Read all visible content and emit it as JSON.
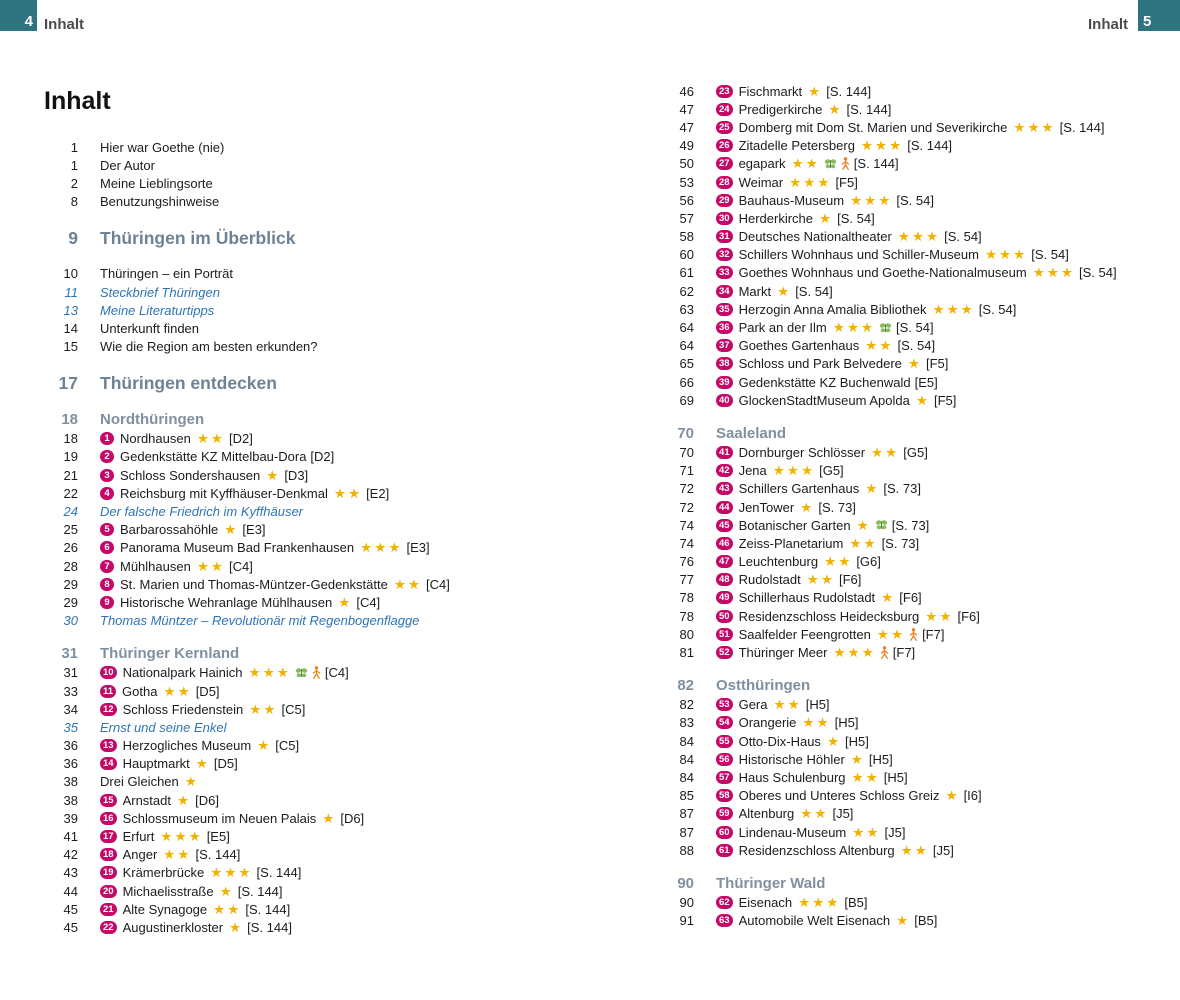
{
  "page_header": {
    "left": {
      "page_number": "4",
      "label": "Inhalt"
    },
    "right": {
      "page_number": "5",
      "label": "Inhalt"
    }
  },
  "title": "Inhalt",
  "colors": {
    "corner_teal": "#2d7480",
    "badge_magenta": "#c50867",
    "star_gold": "#f0b400",
    "heading_slate": "#6e8296",
    "subheading_slate": "#8090a0",
    "special_topic_blue": "#2e74b5",
    "butterfly_green": "#7cb24e",
    "person_orange": "#e8831f"
  },
  "columns": {
    "left": {
      "blocks": [
        {
          "type": "entry",
          "page": "1",
          "text": "Hier war Goethe (nie)"
        },
        {
          "type": "entry",
          "page": "1",
          "text": "Der Autor"
        },
        {
          "type": "entry",
          "page": "2",
          "text": "Meine Lieblingsorte"
        },
        {
          "type": "entry",
          "page": "8",
          "text": "Benutzungshinweise"
        },
        {
          "type": "h1",
          "page": "9",
          "text": "Thüringen im Überblick"
        },
        {
          "type": "entry",
          "page": "10",
          "text": "Thüringen – ein Porträt"
        },
        {
          "type": "entry",
          "page": "11",
          "text": "Steckbrief Thüringen",
          "variant": "italic"
        },
        {
          "type": "entry",
          "page": "13",
          "text": "Meine Literaturtipps",
          "variant": "italic"
        },
        {
          "type": "entry",
          "page": "14",
          "text": "Unterkunft finden"
        },
        {
          "type": "entry",
          "page": "15",
          "text": "Wie die Region am besten erkunden?"
        },
        {
          "type": "h1",
          "page": "17",
          "text": "Thüringen entdecken"
        },
        {
          "type": "h2",
          "page": "18",
          "text": "Nordthüringen"
        },
        {
          "type": "entry",
          "page": "18",
          "marker": "1",
          "text": "Nordhausen",
          "stars": 2,
          "ref": "[D2]"
        },
        {
          "type": "entry",
          "page": "19",
          "marker": "2",
          "text": "Gedenkstätte KZ Mittelbau-Dora",
          "stars": 0,
          "ref": "[D2]"
        },
        {
          "type": "entry",
          "page": "21",
          "marker": "3",
          "text": "Schloss Sondershausen",
          "stars": 1,
          "ref": "[D3]"
        },
        {
          "type": "entry",
          "page": "22",
          "marker": "4",
          "text": "Reichsburg mit Kyffhäuser-Denkmal",
          "stars": 2,
          "ref": "[E2]"
        },
        {
          "type": "entry",
          "page": "24",
          "text": "Der falsche Friedrich im Kyffhäuser",
          "variant": "italic"
        },
        {
          "type": "entry",
          "page": "25",
          "marker": "5",
          "text": "Barbarossahöhle",
          "stars": 1,
          "ref": "[E3]"
        },
        {
          "type": "entry",
          "page": "26",
          "marker": "6",
          "text": "Panorama Museum Bad Frankenhausen",
          "stars": 3,
          "ref": "[E3]"
        },
        {
          "type": "entry",
          "page": "28",
          "marker": "7",
          "text": "Mühlhausen",
          "stars": 2,
          "ref": "[C4]"
        },
        {
          "type": "entry",
          "page": "29",
          "marker": "8",
          "text": "St. Marien und Thomas-Müntzer-Gedenkstätte",
          "stars": 2,
          "ref": "[C4]"
        },
        {
          "type": "entry",
          "page": "29",
          "marker": "9",
          "text": "Historische Wehranlage Mühlhausen",
          "stars": 1,
          "ref": "[C4]"
        },
        {
          "type": "entry",
          "page": "30",
          "text": "Thomas Müntzer – Revolutionär mit Regenbogenflagge",
          "variant": "italic"
        },
        {
          "type": "h2",
          "page": "31",
          "text": "Thüringer Kernland"
        },
        {
          "type": "entry",
          "page": "31",
          "marker": "10",
          "text": "Nationalpark Hainich",
          "stars": 3,
          "icons": [
            "butterfly",
            "person"
          ],
          "ref": "[C4]"
        },
        {
          "type": "entry",
          "page": "33",
          "marker": "11",
          "text": "Gotha",
          "stars": 2,
          "ref": "[D5]"
        },
        {
          "type": "entry",
          "page": "34",
          "marker": "12",
          "text": "Schloss Friedenstein",
          "stars": 2,
          "ref": "[C5]"
        },
        {
          "type": "entry",
          "page": "35",
          "text": "Ernst und seine Enkel",
          "variant": "italic"
        },
        {
          "type": "entry",
          "page": "36",
          "marker": "13",
          "text": "Herzogliches Museum",
          "stars": 1,
          "ref": "[C5]"
        },
        {
          "type": "entry",
          "page": "36",
          "marker": "14",
          "text": "Hauptmarkt",
          "stars": 1,
          "ref": "[D5]"
        },
        {
          "type": "entry",
          "page": "38",
          "text": "Drei Gleichen",
          "stars": 1
        },
        {
          "type": "entry",
          "page": "38",
          "marker": "15",
          "text": "Arnstadt",
          "stars": 1,
          "ref": "[D6]"
        },
        {
          "type": "entry",
          "page": "39",
          "marker": "16",
          "text": "Schlossmuseum im Neuen Palais",
          "stars": 1,
          "ref": "[D6]"
        },
        {
          "type": "entry",
          "page": "41",
          "marker": "17",
          "text": "Erfurt",
          "stars": 3,
          "ref": "[E5]"
        },
        {
          "type": "entry",
          "page": "42",
          "marker": "18",
          "text": "Anger",
          "stars": 2,
          "ref": "[S. 144]"
        },
        {
          "type": "entry",
          "page": "43",
          "marker": "19",
          "text": "Krämerbrücke",
          "stars": 3,
          "ref": "[S. 144]"
        },
        {
          "type": "entry",
          "page": "44",
          "marker": "20",
          "text": "Michaelisstraße",
          "stars": 1,
          "ref": "[S. 144]"
        },
        {
          "type": "entry",
          "page": "45",
          "marker": "21",
          "text": "Alte Synagoge",
          "stars": 2,
          "ref": "[S. 144]"
        },
        {
          "type": "entry",
          "page": "45",
          "marker": "22",
          "text": "Augustinerkloster",
          "stars": 1,
          "ref": "[S. 144]"
        }
      ]
    },
    "right": {
      "blocks": [
        {
          "type": "entry",
          "page": "46",
          "marker": "23",
          "text": "Fischmarkt",
          "stars": 1,
          "ref": "[S. 144]"
        },
        {
          "type": "entry",
          "page": "47",
          "marker": "24",
          "text": "Predigerkirche",
          "stars": 1,
          "ref": "[S. 144]"
        },
        {
          "type": "entry",
          "page": "47",
          "marker": "25",
          "text": "Domberg mit Dom St. Marien und Severikirche",
          "stars": 3,
          "ref": "[S. 144]"
        },
        {
          "type": "entry",
          "page": "49",
          "marker": "26",
          "text": "Zitadelle Petersberg",
          "stars": 3,
          "ref": "[S. 144]"
        },
        {
          "type": "entry",
          "page": "50",
          "marker": "27",
          "text": "egapark",
          "stars": 2,
          "icons": [
            "butterfly",
            "person"
          ],
          "ref": "[S. 144]"
        },
        {
          "type": "entry",
          "page": "53",
          "marker": "28",
          "text": "Weimar",
          "stars": 3,
          "ref": "[F5]"
        },
        {
          "type": "entry",
          "page": "56",
          "marker": "29",
          "text": "Bauhaus-Museum",
          "stars": 3,
          "ref": "[S. 54]"
        },
        {
          "type": "entry",
          "page": "57",
          "marker": "30",
          "text": "Herderkirche",
          "stars": 1,
          "ref": "[S. 54]"
        },
        {
          "type": "entry",
          "page": "58",
          "marker": "31",
          "text": "Deutsches Nationaltheater",
          "stars": 3,
          "ref": "[S. 54]"
        },
        {
          "type": "entry",
          "page": "60",
          "marker": "32",
          "text": "Schillers Wohnhaus und Schiller-Museum",
          "stars": 3,
          "ref": "[S. 54]"
        },
        {
          "type": "entry",
          "page": "61",
          "marker": "33",
          "text": "Goethes Wohnhaus und Goethe-Nationalmuseum",
          "stars": 3,
          "ref": "[S. 54]"
        },
        {
          "type": "entry",
          "page": "62",
          "marker": "34",
          "text": "Markt",
          "stars": 1,
          "ref": "[S. 54]"
        },
        {
          "type": "entry",
          "page": "63",
          "marker": "35",
          "text": "Herzogin Anna Amalia Bibliothek",
          "stars": 3,
          "ref": "[S. 54]"
        },
        {
          "type": "entry",
          "page": "64",
          "marker": "36",
          "text": "Park an der Ilm",
          "stars": 3,
          "icons": [
            "butterfly"
          ],
          "ref": "[S. 54]"
        },
        {
          "type": "entry",
          "page": "64",
          "marker": "37",
          "text": "Goethes Gartenhaus",
          "stars": 2,
          "ref": "[S. 54]"
        },
        {
          "type": "entry",
          "page": "65",
          "marker": "38",
          "text": "Schloss und Park Belvedere",
          "stars": 1,
          "ref": "[F5]"
        },
        {
          "type": "entry",
          "page": "66",
          "marker": "39",
          "text": "Gedenkstätte KZ Buchenwald",
          "stars": 0,
          "ref": "[E5]"
        },
        {
          "type": "entry",
          "page": "69",
          "marker": "40",
          "text": "GlockenStadtMuseum Apolda",
          "stars": 1,
          "ref": "[F5]"
        },
        {
          "type": "h2",
          "page": "70",
          "text": "Saaleland"
        },
        {
          "type": "entry",
          "page": "70",
          "marker": "41",
          "text": "Dornburger Schlösser",
          "stars": 2,
          "ref": "[G5]"
        },
        {
          "type": "entry",
          "page": "71",
          "marker": "42",
          "text": "Jena",
          "stars": 3,
          "ref": "[G5]"
        },
        {
          "type": "entry",
          "page": "72",
          "marker": "43",
          "text": "Schillers Gartenhaus",
          "stars": 1,
          "ref": "[S. 73]"
        },
        {
          "type": "entry",
          "page": "72",
          "marker": "44",
          "text": "JenTower",
          "stars": 1,
          "ref": "[S. 73]"
        },
        {
          "type": "entry",
          "page": "74",
          "marker": "45",
          "text": "Botanischer Garten",
          "stars": 1,
          "icons": [
            "butterfly"
          ],
          "ref": "[S. 73]"
        },
        {
          "type": "entry",
          "page": "74",
          "marker": "46",
          "text": "Zeiss-Planetarium",
          "stars": 2,
          "ref": "[S. 73]"
        },
        {
          "type": "entry",
          "page": "76",
          "marker": "47",
          "text": "Leuchtenburg",
          "stars": 2,
          "ref": "[G6]"
        },
        {
          "type": "entry",
          "page": "77",
          "marker": "48",
          "text": "Rudolstadt",
          "stars": 2,
          "ref": "[F6]"
        },
        {
          "type": "entry",
          "page": "78",
          "marker": "49",
          "text": "Schillerhaus Rudolstadt",
          "stars": 1,
          "ref": "[F6]"
        },
        {
          "type": "entry",
          "page": "78",
          "marker": "50",
          "text": "Residenzschloss Heidecksburg",
          "stars": 2,
          "ref": "[F6]"
        },
        {
          "type": "entry",
          "page": "80",
          "marker": "51",
          "text": "Saalfelder Feengrotten",
          "stars": 2,
          "icons": [
            "person"
          ],
          "ref": "[F7]"
        },
        {
          "type": "entry",
          "page": "81",
          "marker": "52",
          "text": "Thüringer Meer",
          "stars": 3,
          "icons": [
            "person"
          ],
          "ref": "[F7]"
        },
        {
          "type": "h2",
          "page": "82",
          "text": "Ostthüringen"
        },
        {
          "type": "entry",
          "page": "82",
          "marker": "53",
          "text": "Gera",
          "stars": 2,
          "ref": "[H5]"
        },
        {
          "type": "entry",
          "page": "83",
          "marker": "54",
          "text": "Orangerie",
          "stars": 2,
          "ref": "[H5]"
        },
        {
          "type": "entry",
          "page": "84",
          "marker": "55",
          "text": "Otto-Dix-Haus",
          "stars": 1,
          "ref": "[H5]"
        },
        {
          "type": "entry",
          "page": "84",
          "marker": "56",
          "text": "Historische Höhler",
          "stars": 1,
          "ref": "[H5]"
        },
        {
          "type": "entry",
          "page": "84",
          "marker": "57",
          "text": "Haus Schulenburg",
          "stars": 2,
          "ref": "[H5]"
        },
        {
          "type": "entry",
          "page": "85",
          "marker": "58",
          "text": "Oberes und Unteres Schloss Greiz",
          "stars": 1,
          "ref": "[I6]"
        },
        {
          "type": "entry",
          "page": "87",
          "marker": "59",
          "text": "Altenburg",
          "stars": 2,
          "ref": "[J5]"
        },
        {
          "type": "entry",
          "page": "87",
          "marker": "60",
          "text": "Lindenau-Museum",
          "stars": 2,
          "ref": "[J5]"
        },
        {
          "type": "entry",
          "page": "88",
          "marker": "61",
          "text": "Residenzschloss Altenburg",
          "stars": 2,
          "ref": "[J5]"
        },
        {
          "type": "h2",
          "page": "90",
          "text": "Thüringer Wald"
        },
        {
          "type": "entry",
          "page": "90",
          "marker": "62",
          "text": "Eisenach",
          "stars": 3,
          "ref": "[B5]"
        },
        {
          "type": "entry",
          "page": "91",
          "marker": "63",
          "text": "Automobile Welt Eisenach",
          "stars": 1,
          "ref": "[B5]"
        }
      ]
    }
  }
}
